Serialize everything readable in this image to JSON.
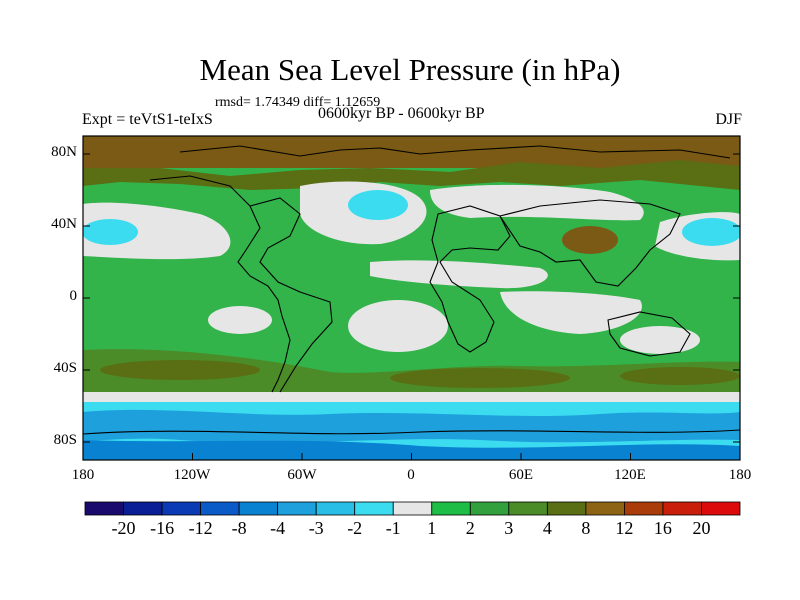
{
  "title": "Mean Sea Level Pressure (in hPa)",
  "stats": "rmsd= 1.74349 diff= 1.12659",
  "experiment": "Expt = teVtS1-teIxS",
  "period": "0600kyr BP - 0600kyr BP",
  "season": "DJF",
  "lat_labels": [
    "80N",
    "40N",
    "0",
    "40S",
    "80S"
  ],
  "lon_labels": [
    "180",
    "120W",
    "60W",
    "0",
    "60E",
    "120E",
    "180"
  ],
  "colorbar": {
    "labels": [
      "-20",
      "-16",
      "-12",
      "-8",
      "-4",
      "-3",
      "-2",
      "-1",
      "1",
      "2",
      "3",
      "4",
      "8",
      "12",
      "16",
      "20"
    ],
    "colors": [
      "#1a0a6e",
      "#0a1e96",
      "#0a3ab4",
      "#0a5ac8",
      "#0a82d2",
      "#1ea0dc",
      "#28bee6",
      "#3cdcf0",
      "#e6e6e6",
      "#1ebe46",
      "#32a03c",
      "#4b8c28",
      "#5a6e14",
      "#8c6414",
      "#aa3c0a",
      "#c81e0a",
      "#dc0a0a"
    ]
  },
  "field_colors": {
    "land_green": "#32b44b",
    "dark_green": "#4b8c28",
    "olive": "#5a6e14",
    "brown": "#7a5a14",
    "neutral": "#e6e6e6",
    "light_blue": "#3cdcf0",
    "mid_blue": "#1ea0dc",
    "blue": "#0a82d2"
  }
}
